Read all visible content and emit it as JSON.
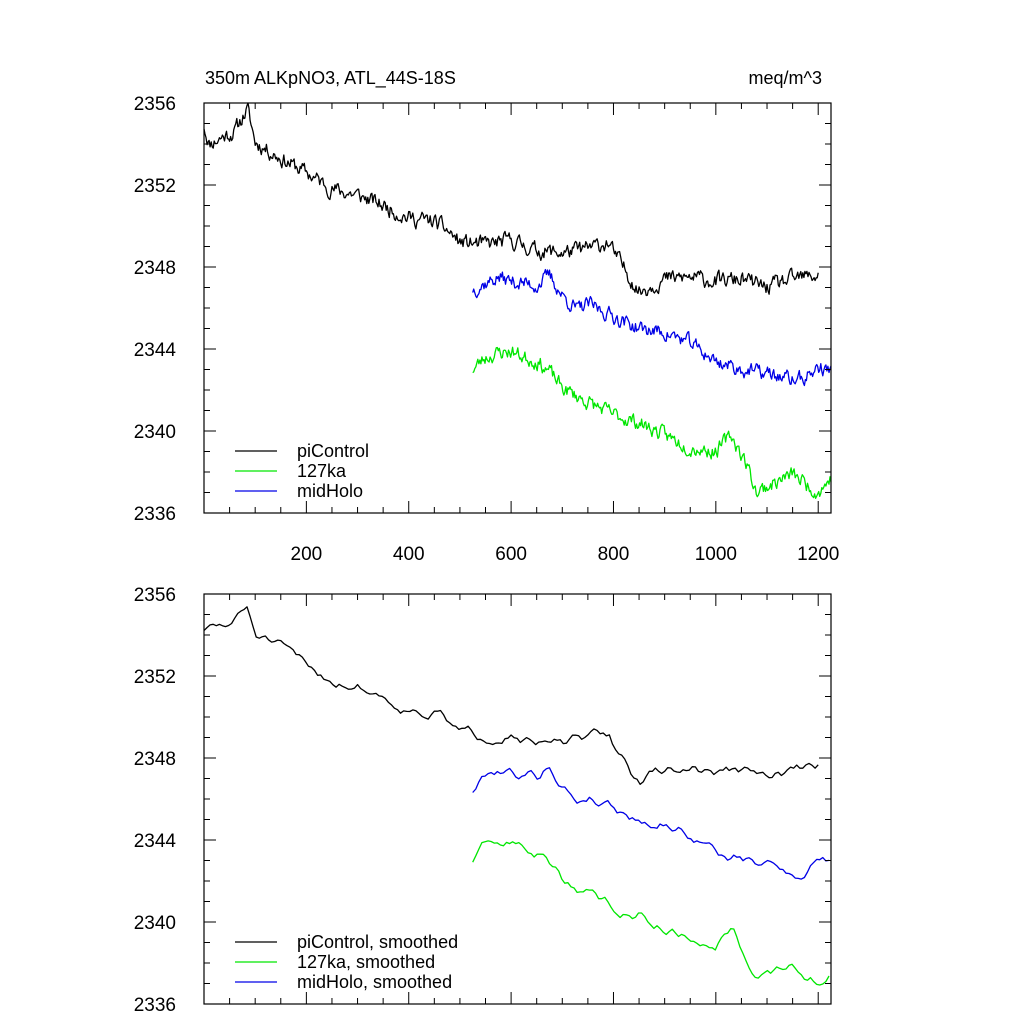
{
  "chart_data": [
    {
      "type": "line",
      "title": "350m ALKpNO3, ATL_44S-18S",
      "units": "meq/m^3",
      "xlim": [
        0,
        1225
      ],
      "ylim": [
        2336,
        2356
      ],
      "yticks": [
        2336,
        2340,
        2344,
        2348,
        2352,
        2356
      ],
      "xticks": [
        200,
        400,
        600,
        800,
        1000,
        1200
      ],
      "show_xtick_labels": true,
      "legend_position": "bottom-left",
      "series": [
        {
          "name": "piControl",
          "color": "#000000",
          "anchors": [
            [
              0,
              2354.9
            ],
            [
              10,
              2354.0
            ],
            [
              40,
              2354.4
            ],
            [
              60,
              2354.6
            ],
            [
              75,
              2355.3
            ],
            [
              85,
              2355.7
            ],
            [
              100,
              2354.1
            ],
            [
              150,
              2353.3
            ],
            [
              200,
              2352.6
            ],
            [
              250,
              2351.8
            ],
            [
              300,
              2351.5
            ],
            [
              350,
              2351.0
            ],
            [
              400,
              2350.4
            ],
            [
              450,
              2350.2
            ],
            [
              475,
              2349.8
            ],
            [
              500,
              2349.2
            ],
            [
              550,
              2349.1
            ],
            [
              600,
              2349.3
            ],
            [
              650,
              2348.8
            ],
            [
              700,
              2348.7
            ],
            [
              750,
              2348.9
            ],
            [
              790,
              2349.2
            ],
            [
              800,
              2348.7
            ],
            [
              830,
              2347.6
            ],
            [
              850,
              2346.8
            ],
            [
              900,
              2347.4
            ],
            [
              950,
              2347.5
            ],
            [
              1000,
              2347.3
            ],
            [
              1050,
              2347.4
            ],
            [
              1100,
              2347.0
            ],
            [
              1150,
              2347.4
            ],
            [
              1200,
              2347.6
            ]
          ],
          "noise": 0.32,
          "step": 2,
          "seed": 11
        },
        {
          "name": "127ka",
          "color": "#00e600",
          "anchors": [
            [
              525,
              2343.0
            ],
            [
              550,
              2343.6
            ],
            [
              575,
              2343.8
            ],
            [
              600,
              2343.9
            ],
            [
              625,
              2343.6
            ],
            [
              650,
              2343.4
            ],
            [
              675,
              2342.9
            ],
            [
              700,
              2342.1
            ],
            [
              750,
              2341.4
            ],
            [
              800,
              2340.8
            ],
            [
              850,
              2340.4
            ],
            [
              900,
              2339.8
            ],
            [
              950,
              2339.2
            ],
            [
              1000,
              2339.0
            ],
            [
              1030,
              2339.8
            ],
            [
              1060,
              2338.4
            ],
            [
              1080,
              2337.0
            ],
            [
              1100,
              2337.3
            ],
            [
              1150,
              2337.9
            ],
            [
              1200,
              2337.0
            ],
            [
              1225,
              2337.7
            ]
          ],
          "noise": 0.3,
          "step": 2,
          "seed": 23
        },
        {
          "name": "midHolo",
          "color": "#0000e6",
          "anchors": [
            [
              525,
              2346.9
            ],
            [
              550,
              2347.2
            ],
            [
              575,
              2347.5
            ],
            [
              600,
              2347.3
            ],
            [
              625,
              2347.2
            ],
            [
              650,
              2347.1
            ],
            [
              675,
              2347.6
            ],
            [
              700,
              2346.6
            ],
            [
              730,
              2345.9
            ],
            [
              750,
              2346.2
            ],
            [
              800,
              2345.6
            ],
            [
              850,
              2345.0
            ],
            [
              900,
              2344.8
            ],
            [
              950,
              2344.3
            ],
            [
              1000,
              2343.4
            ],
            [
              1050,
              2343.0
            ],
            [
              1100,
              2342.8
            ],
            [
              1150,
              2342.5
            ],
            [
              1175,
              2342.6
            ],
            [
              1200,
              2343.1
            ],
            [
              1225,
              2342.9
            ]
          ],
          "noise": 0.3,
          "step": 2,
          "seed": 37
        }
      ]
    },
    {
      "type": "line",
      "title": "",
      "units": "",
      "xlim": [
        0,
        1225
      ],
      "ylim": [
        2336,
        2356
      ],
      "yticks": [
        2336,
        2340,
        2344,
        2348,
        2352,
        2356
      ],
      "xticks": [
        200,
        400,
        600,
        800,
        1000,
        1200
      ],
      "show_xtick_labels": false,
      "legend_position": "bottom-left",
      "series": [
        {
          "name": "piControl, smoothed",
          "color": "#000000",
          "anchors": [
            [
              0,
              2354.3
            ],
            [
              40,
              2354.4
            ],
            [
              60,
              2354.7
            ],
            [
              75,
              2355.1
            ],
            [
              85,
              2355.3
            ],
            [
              100,
              2354.1
            ],
            [
              150,
              2353.3
            ],
            [
              200,
              2352.6
            ],
            [
              250,
              2351.8
            ],
            [
              300,
              2351.5
            ],
            [
              350,
              2351.0
            ],
            [
              400,
              2350.4
            ],
            [
              450,
              2350.2
            ],
            [
              475,
              2349.8
            ],
            [
              500,
              2349.2
            ],
            [
              550,
              2349.1
            ],
            [
              600,
              2349.3
            ],
            [
              650,
              2348.6
            ],
            [
              700,
              2348.7
            ],
            [
              750,
              2348.9
            ],
            [
              790,
              2349.2
            ],
            [
              800,
              2348.7
            ],
            [
              830,
              2347.6
            ],
            [
              850,
              2346.8
            ],
            [
              900,
              2347.4
            ],
            [
              950,
              2347.5
            ],
            [
              1000,
              2347.3
            ],
            [
              1050,
              2347.4
            ],
            [
              1100,
              2347.0
            ],
            [
              1150,
              2347.4
            ],
            [
              1200,
              2347.6
            ]
          ],
          "noise": 0.22,
          "step": 6,
          "seed": 51
        },
        {
          "name": "127ka, smoothed",
          "color": "#00e600",
          "anchors": [
            [
              525,
              2343.0
            ],
            [
              550,
              2343.6
            ],
            [
              575,
              2343.8
            ],
            [
              600,
              2343.9
            ],
            [
              625,
              2343.6
            ],
            [
              650,
              2343.4
            ],
            [
              675,
              2342.9
            ],
            [
              700,
              2342.1
            ],
            [
              750,
              2341.4
            ],
            [
              800,
              2340.8
            ],
            [
              850,
              2340.4
            ],
            [
              900,
              2339.8
            ],
            [
              950,
              2339.2
            ],
            [
              1000,
              2339.0
            ],
            [
              1030,
              2339.9
            ],
            [
              1060,
              2338.4
            ],
            [
              1080,
              2337.0
            ],
            [
              1100,
              2337.3
            ],
            [
              1150,
              2337.9
            ],
            [
              1200,
              2337.0
            ],
            [
              1225,
              2337.7
            ]
          ],
          "noise": 0.22,
          "step": 6,
          "seed": 63
        },
        {
          "name": "midHolo, smoothed",
          "color": "#0000e6",
          "anchors": [
            [
              525,
              2346.4
            ],
            [
              550,
              2347.2
            ],
            [
              575,
              2347.5
            ],
            [
              600,
              2347.3
            ],
            [
              625,
              2347.2
            ],
            [
              650,
              2347.1
            ],
            [
              675,
              2347.7
            ],
            [
              700,
              2346.6
            ],
            [
              730,
              2345.9
            ],
            [
              750,
              2346.2
            ],
            [
              800,
              2345.6
            ],
            [
              850,
              2345.0
            ],
            [
              900,
              2344.8
            ],
            [
              950,
              2344.3
            ],
            [
              1000,
              2343.4
            ],
            [
              1050,
              2343.0
            ],
            [
              1100,
              2342.8
            ],
            [
              1150,
              2342.5
            ],
            [
              1175,
              2342.3
            ],
            [
              1200,
              2343.2
            ],
            [
              1225,
              2342.9
            ]
          ],
          "noise": 0.22,
          "step": 6,
          "seed": 79
        }
      ]
    }
  ]
}
